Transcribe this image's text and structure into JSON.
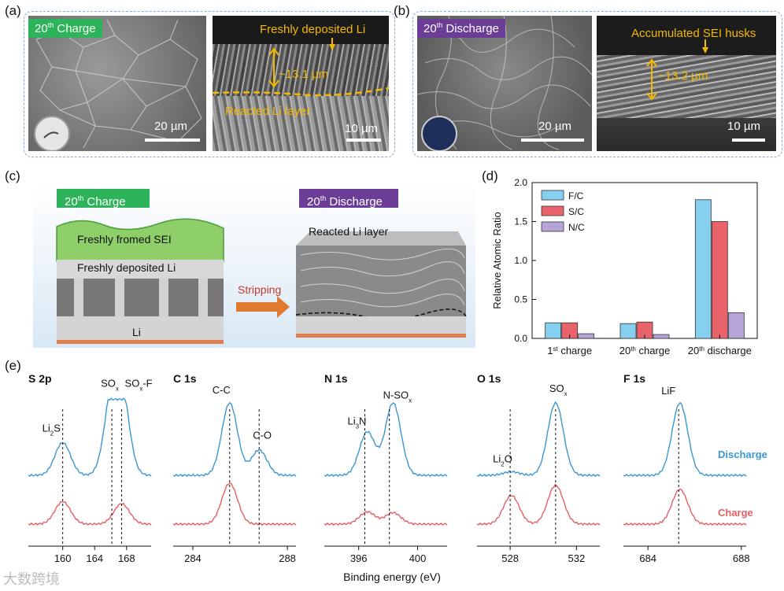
{
  "panel_labels": {
    "a": "(a)",
    "b": "(b)",
    "c": "(c)",
    "d": "(d)",
    "e": "(e)"
  },
  "panel_a": {
    "tag": "Charge",
    "tag_prefix": "20",
    "tag_sup": "th",
    "scale_left": "20 µm",
    "scale_right": "10 µm",
    "ann_top": "Freshly deposited Li",
    "ann_thickness": "~13.1 µm",
    "ann_bottom": "Reacted Li layer"
  },
  "panel_b": {
    "tag": "Discharge",
    "tag_prefix": "20",
    "tag_sup": "th",
    "scale_left": "20 µm",
    "scale_right": "10 µm",
    "ann_top": "Accumulated SEI husks",
    "ann_thickness": "~13.2 µm"
  },
  "panel_c": {
    "left_tag_prefix": "20",
    "left_tag_sup": "th",
    "left_tag": "Charge",
    "right_tag_prefix": "20",
    "right_tag_sup": "th",
    "right_tag": "Discharge",
    "sei_label": "Freshly fromed SEI",
    "dep_label": "Freshly deposited Li",
    "li_label": "Li",
    "arrow_label": "Stripping",
    "reacted_label": "Reacted Li layer"
  },
  "colors": {
    "fc": "#86cfee",
    "sc": "#e9636a",
    "nc": "#b6a5d6",
    "discharge": "#3b97d3",
    "charge": "#e55f63",
    "green": "#2db35a",
    "purple": "#6b3d97",
    "anno": "#f5b800"
  },
  "chart_data": {
    "type": "bar",
    "ylabel": "Relative Atomic Ratio",
    "ylim": [
      0,
      2.0
    ],
    "yticks": [
      "0.0",
      "0.5",
      "1.0",
      "1.5",
      "2.0"
    ],
    "categories": [
      {
        "pre": "1",
        "sup": "st",
        "post": " charge"
      },
      {
        "pre": "20",
        "sup": "th",
        "post": " charge"
      },
      {
        "pre": "20",
        "sup": "th",
        "post": " discharge"
      }
    ],
    "series": [
      {
        "name": "F/C",
        "values": [
          0.2,
          0.19,
          1.78
        ]
      },
      {
        "name": "S/C",
        "values": [
          0.2,
          0.21,
          1.5
        ]
      },
      {
        "name": "N/C",
        "values": [
          0.06,
          0.05,
          0.33
        ]
      }
    ],
    "legend": "top-left"
  },
  "xps": {
    "xlabel": "Binding energy (eV)",
    "discharge_label": "Discharge",
    "charge_label": "Charge",
    "panels": [
      {
        "title": "S 2p",
        "ticks": [
          "160",
          "164",
          "168"
        ],
        "peaks": [
          {
            "text": "Li",
            "sub": "2",
            "post": "S"
          },
          {
            "text": "SO",
            "sub": "x",
            "post": ""
          },
          {
            "text": "SO",
            "sub": "x",
            "post": "-F"
          }
        ]
      },
      {
        "title": "C 1s",
        "ticks": [
          "284",
          "288"
        ],
        "peaks": [
          {
            "text": "C-C",
            "sub": "",
            "post": ""
          },
          {
            "text": "C-O",
            "sub": "",
            "post": ""
          }
        ]
      },
      {
        "title": "N 1s",
        "ticks": [
          "396",
          "400"
        ],
        "peaks": [
          {
            "text": "Li",
            "sub": "3",
            "post": "N"
          },
          {
            "text": "N-SO",
            "sub": "x",
            "post": ""
          }
        ]
      },
      {
        "title": "O 1s",
        "ticks": [
          "528",
          "532"
        ],
        "peaks": [
          {
            "text": "Li",
            "sub": "2",
            "post": "O"
          },
          {
            "text": "SO",
            "sub": "x",
            "post": ""
          }
        ]
      },
      {
        "title": "F 1s",
        "ticks": [
          "684",
          "688"
        ],
        "peaks": [
          {
            "text": "LiF",
            "sub": "",
            "post": ""
          }
        ]
      }
    ]
  },
  "watermark": "大数跨境"
}
